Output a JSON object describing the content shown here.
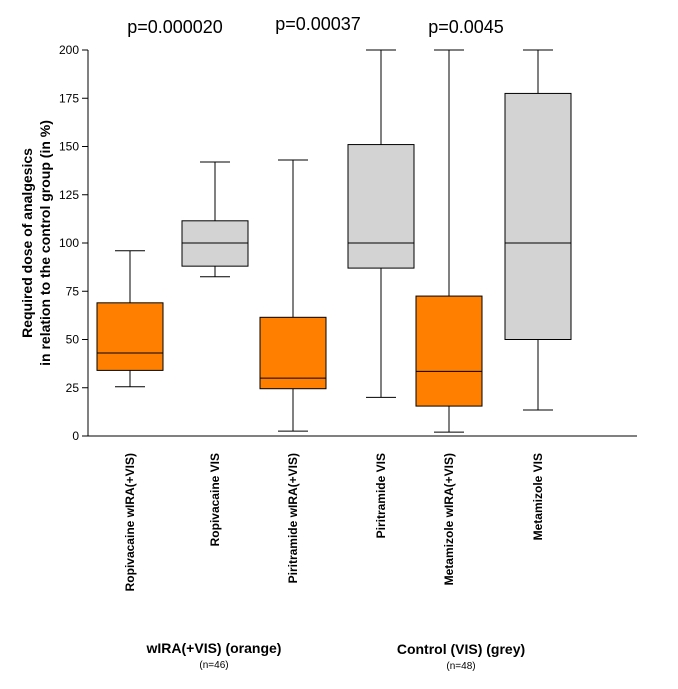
{
  "chart_data": {
    "type": "box",
    "ylabel_line1": "Required dose of analgesics",
    "ylabel_line2": "in relation to the control group (in %)",
    "ylim": [
      0,
      200
    ],
    "yticks": [
      "0",
      "25",
      "50",
      "75",
      "100",
      "125",
      "150",
      "175",
      "200"
    ],
    "categories": [
      "Ropivacaine  wIRA(+VIS)",
      "Ropivacaine  VIS",
      "Piritramide  wIRA(+VIS)",
      "Piritramide  VIS",
      "Metamizole  wIRA(+VIS)",
      "Metamizole  VIS"
    ],
    "boxes": [
      {
        "min": 25.5,
        "q1": 34,
        "median": 43,
        "q3": 69,
        "max": 96,
        "color": "#ff8000"
      },
      {
        "min": 82.5,
        "q1": 88,
        "median": 100,
        "q3": 111.5,
        "max": 142,
        "color": "#d3d3d3"
      },
      {
        "min": 2.5,
        "q1": 24.5,
        "median": 30,
        "q3": 61.5,
        "max": 143,
        "color": "#ff8000"
      },
      {
        "min": 20,
        "q1": 87,
        "median": 100,
        "q3": 151,
        "max": 200,
        "color": "#d3d3d3"
      },
      {
        "min": 2,
        "q1": 15.5,
        "median": 33.5,
        "q3": 72.5,
        "max": 200,
        "color": "#ff8000"
      },
      {
        "min": 13.5,
        "q1": 50,
        "median": 100,
        "q3": 177.5,
        "max": 200,
        "color": "#d3d3d3"
      }
    ],
    "p_values": [
      "p=0.000020",
      "p=0.00037",
      "p=0.0045"
    ],
    "groups": [
      {
        "label": "wIRA(+VIS) (orange)",
        "n": "(n=46)"
      },
      {
        "label": "Control (VIS) (grey)",
        "n": "(n=48)"
      }
    ]
  }
}
